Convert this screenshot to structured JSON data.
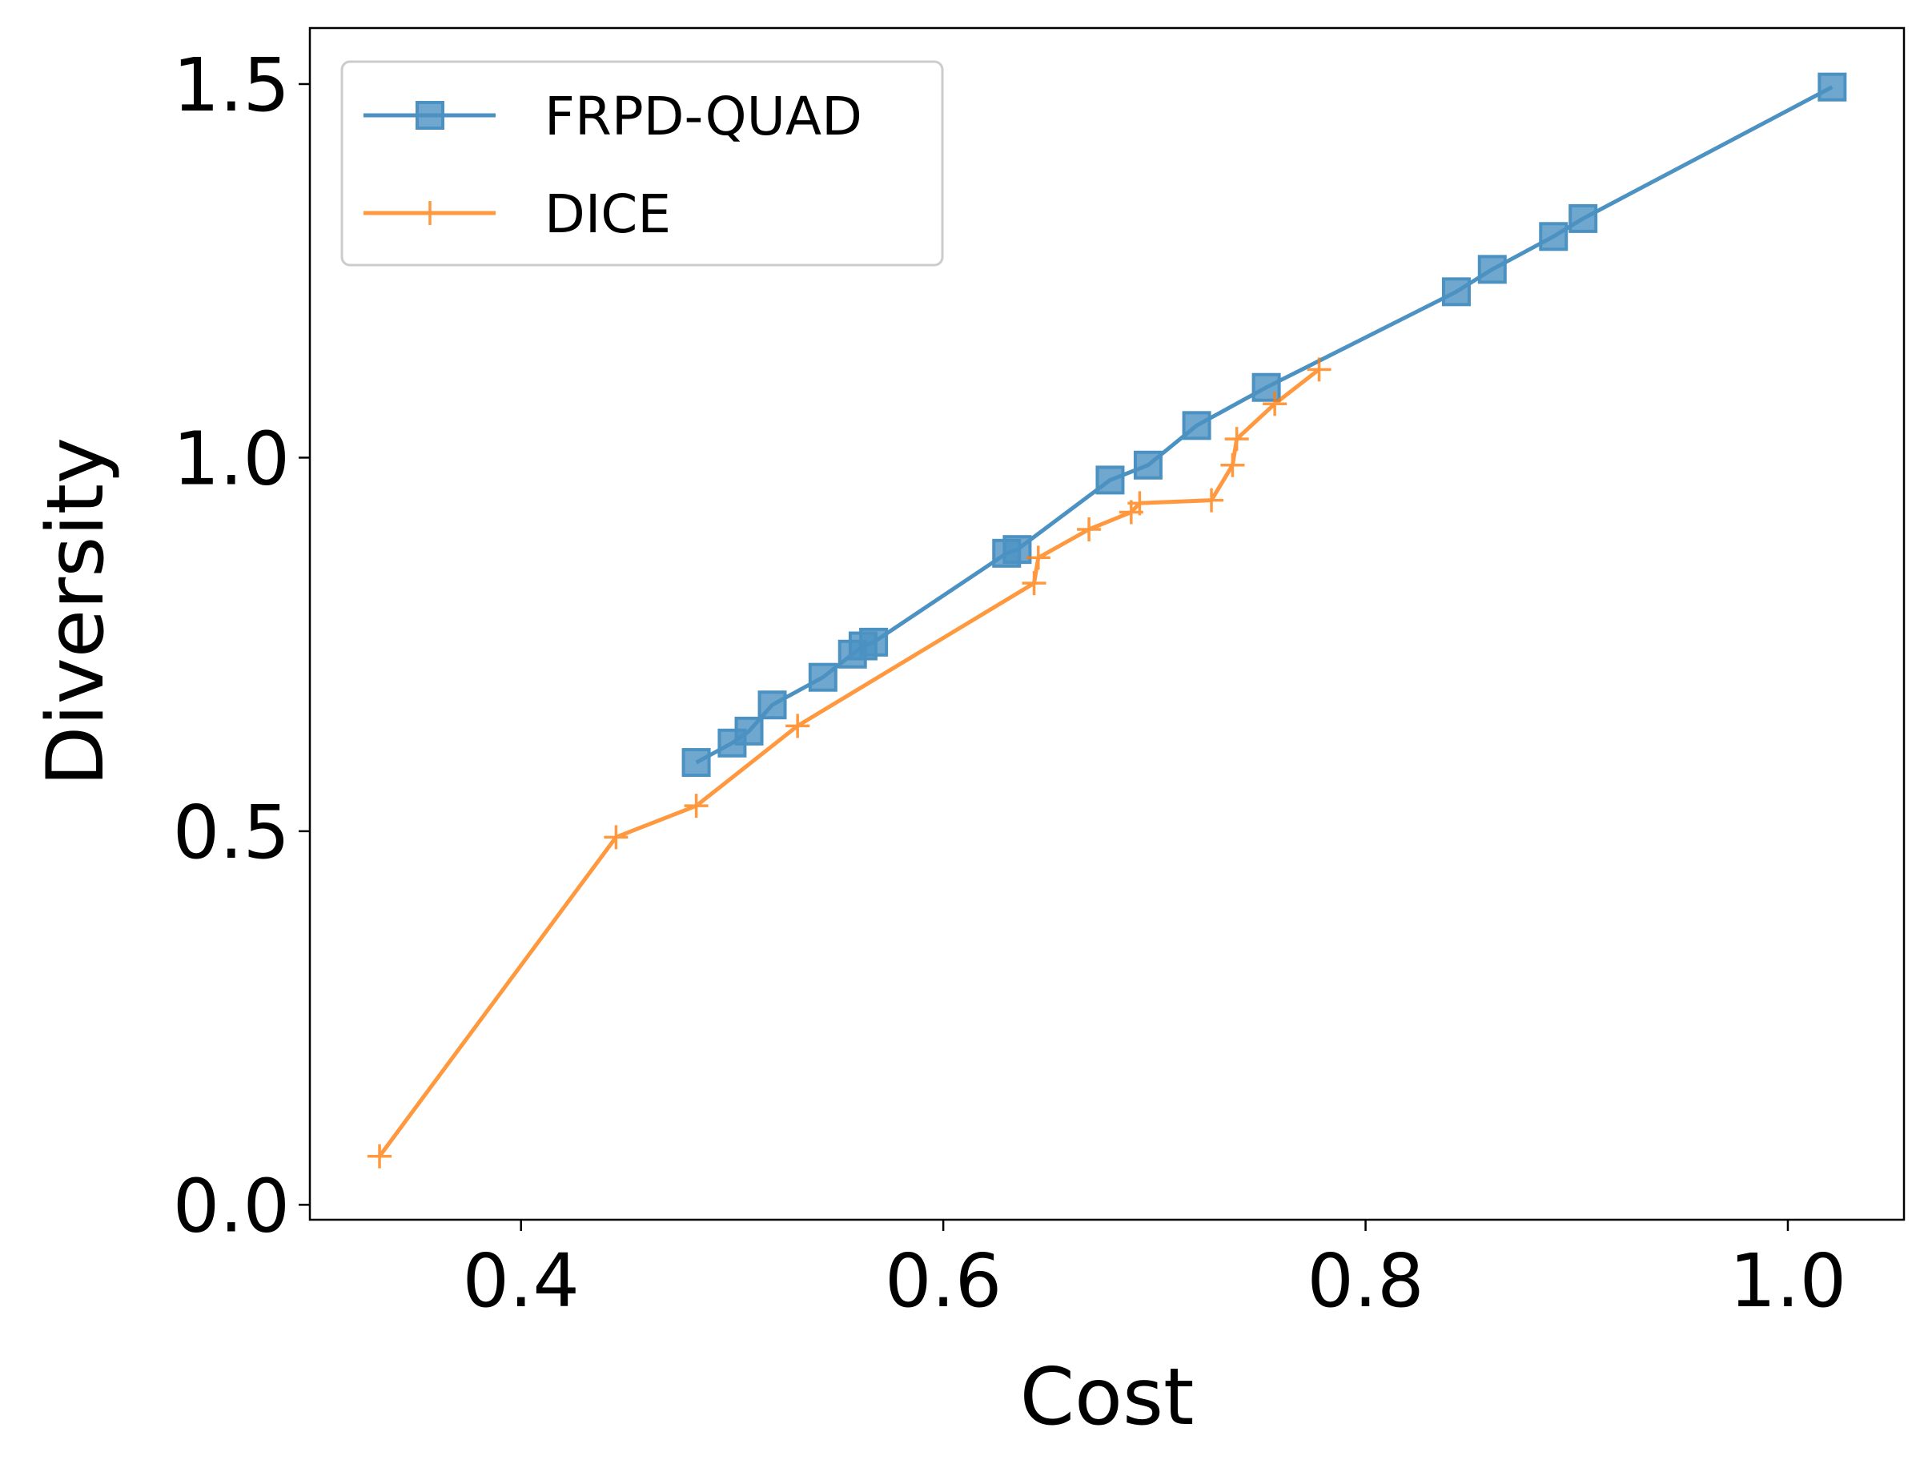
{
  "chart_data": {
    "type": "line",
    "title": "",
    "xlabel": "Cost",
    "ylabel": "Diversity",
    "xlim": [
      0.3,
      1.055
    ],
    "ylim": [
      -0.02,
      1.575
    ],
    "xticks": [
      0.4,
      0.6,
      0.8,
      1.0
    ],
    "xtick_labels": [
      "0.4",
      "0.6",
      "0.8",
      "1.0"
    ],
    "yticks": [
      0.0,
      0.5,
      1.0,
      1.5
    ],
    "ytick_labels": [
      "0.0",
      "0.5",
      "1.0",
      "1.5"
    ],
    "grid": false,
    "legend_position": "top-left",
    "series": [
      {
        "name": "FRPD-QUAD",
        "color": "#1f77b4",
        "marker": "square",
        "points": [
          [
            0.483,
            0.592
          ],
          [
            0.5,
            0.618
          ],
          [
            0.508,
            0.634
          ],
          [
            0.519,
            0.669
          ],
          [
            0.543,
            0.706
          ],
          [
            0.557,
            0.737
          ],
          [
            0.562,
            0.748
          ],
          [
            0.567,
            0.753
          ],
          [
            0.63,
            0.872
          ],
          [
            0.635,
            0.877
          ],
          [
            0.679,
            0.97
          ],
          [
            0.697,
            0.99
          ],
          [
            0.72,
            1.043
          ],
          [
            0.753,
            1.094
          ],
          [
            0.843,
            1.222
          ],
          [
            0.86,
            1.252
          ],
          [
            0.889,
            1.296
          ],
          [
            0.903,
            1.32
          ],
          [
            1.021,
            1.496
          ]
        ]
      },
      {
        "name": "DICE",
        "color": "#ff7f0e",
        "marker": "plus",
        "points": [
          [
            0.333,
            0.065
          ],
          [
            0.445,
            0.492
          ],
          [
            0.483,
            0.534
          ],
          [
            0.531,
            0.641
          ],
          [
            0.643,
            0.832
          ],
          [
            0.645,
            0.866
          ],
          [
            0.669,
            0.904
          ],
          [
            0.689,
            0.927
          ],
          [
            0.693,
            0.939
          ],
          [
            0.727,
            0.943
          ],
          [
            0.737,
            0.99
          ],
          [
            0.739,
            1.025
          ],
          [
            0.757,
            1.072
          ],
          [
            0.778,
            1.118
          ]
        ]
      }
    ]
  }
}
